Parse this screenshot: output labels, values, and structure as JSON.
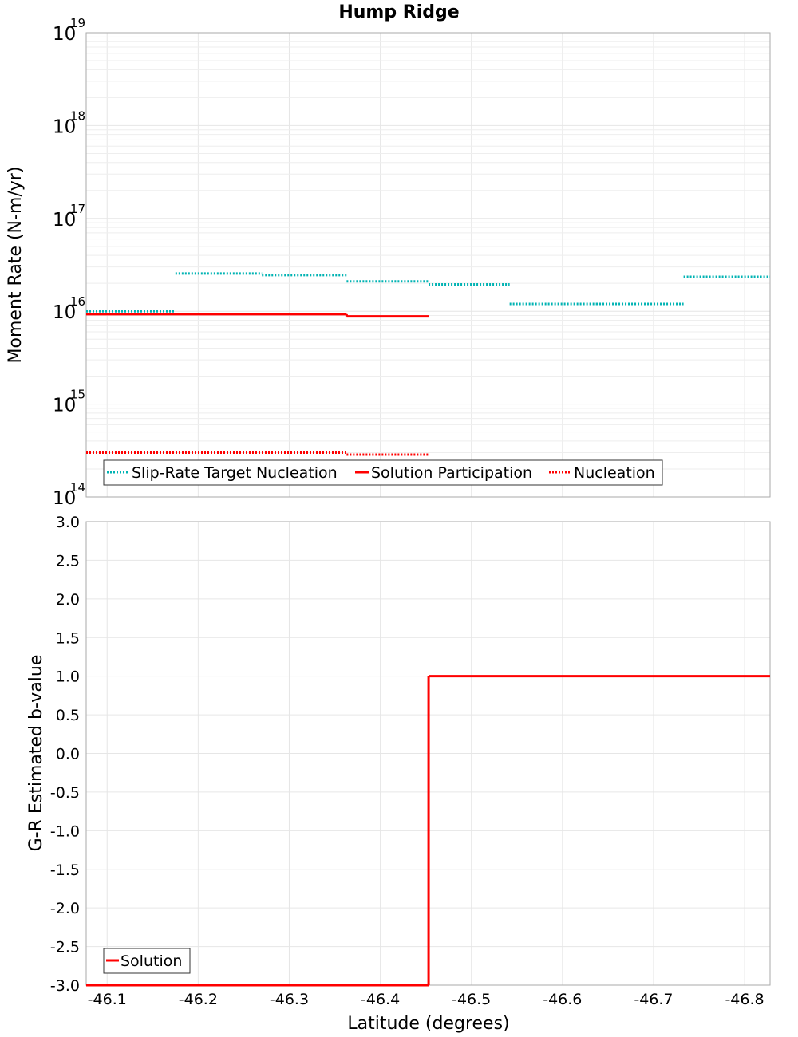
{
  "title": "Hump Ridge",
  "xlabel": "Latitude (degrees)",
  "x_ticks": [
    "-46.1",
    "-46.2",
    "-46.3",
    "-46.4",
    "-46.5",
    "-46.6",
    "-46.7",
    "-46.8"
  ],
  "colors": {
    "target": "#00b3b3",
    "solution": "#ff0000",
    "nucleation": "#ff0000",
    "grid": "#e6e6e6",
    "frame": "#aaaaaa"
  },
  "chart_data": [
    {
      "type": "line",
      "ylabel": "Moment Rate (N-m/yr)",
      "yscale": "log",
      "xlim": [
        -46.077,
        -46.828
      ],
      "ylim": [
        100000000000000.0,
        1e+19
      ],
      "y_ticks": [
        {
          "base": "10",
          "exp": "14"
        },
        {
          "base": "10",
          "exp": "15"
        },
        {
          "base": "10",
          "exp": "16"
        },
        {
          "base": "10",
          "exp": "17"
        },
        {
          "base": "10",
          "exp": "18"
        },
        {
          "base": "10",
          "exp": "19"
        }
      ],
      "grid": true,
      "legend_position": "bottom-left",
      "series": [
        {
          "name": "Slip-Rate Target Nucleation",
          "style": "dotted",
          "color_key": "target",
          "segments": [
            {
              "x0": -46.077,
              "x1": -46.175,
              "y": 1e+16
            },
            {
              "x0": -46.175,
              "x1": -46.27,
              "y": 2.55e+16
            },
            {
              "x0": -46.27,
              "x1": -46.363,
              "y": 2.45e+16
            },
            {
              "x0": -46.363,
              "x1": -46.453,
              "y": 2.1e+16
            },
            {
              "x0": -46.453,
              "x1": -46.542,
              "y": 1.95e+16
            },
            {
              "x0": -46.542,
              "x1": -46.637,
              "y": 1.2e+16
            },
            {
              "x0": -46.637,
              "x1": -46.733,
              "y": 1.2e+16
            },
            {
              "x0": -46.733,
              "x1": -46.828,
              "y": 2.35e+16
            }
          ]
        },
        {
          "name": "Solution Participation",
          "style": "solid",
          "color_key": "solution",
          "segments": [
            {
              "x0": -46.077,
              "x1": -46.363,
              "y": 9300000000000000.0
            },
            {
              "x0": -46.363,
              "x1": -46.453,
              "y": 8800000000000000.0
            }
          ]
        },
        {
          "name": "Nucleation",
          "style": "dotted",
          "color_key": "nucleation",
          "segments": [
            {
              "x0": -46.077,
              "x1": -46.363,
              "y": 300000000000000.0
            },
            {
              "x0": -46.363,
              "x1": -46.453,
              "y": 285000000000000.0
            }
          ]
        }
      ]
    },
    {
      "type": "line",
      "ylabel": "G-R Estimated b-value",
      "xlim": [
        -46.077,
        -46.828
      ],
      "ylim": [
        -3.0,
        3.0
      ],
      "y_ticks": [
        "3.0",
        "2.5",
        "2.0",
        "1.5",
        "1.0",
        "0.5",
        "0.0",
        "-0.5",
        "-1.0",
        "-1.5",
        "-2.0",
        "-2.5",
        "-3.0"
      ],
      "grid": true,
      "legend_position": "bottom-left",
      "series": [
        {
          "name": "Solution",
          "style": "solid",
          "color_key": "solution",
          "segments": [
            {
              "x0": -46.077,
              "x1": -46.453,
              "y": -3.0
            },
            {
              "x0": -46.453,
              "x1": -46.828,
              "y": 1.0
            }
          ]
        }
      ]
    }
  ]
}
